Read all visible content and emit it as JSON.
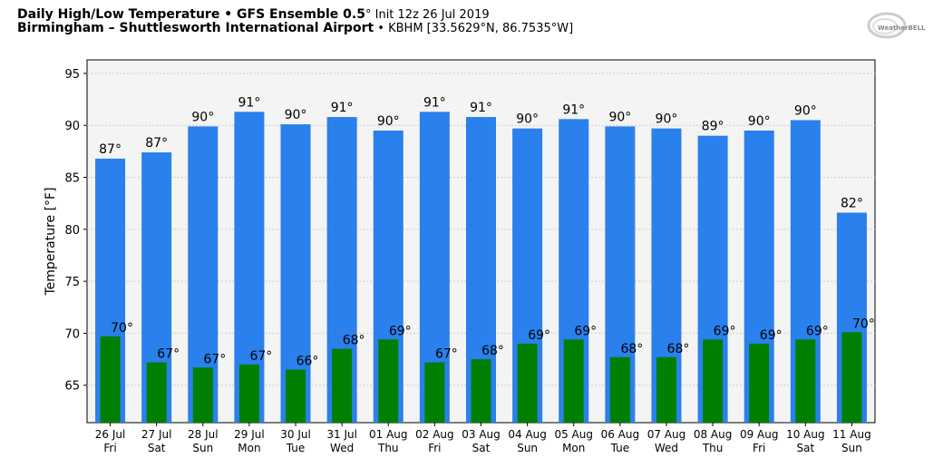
{
  "title": {
    "line1_bold": "Daily High/Low Temperature • GFS Ensemble 0.5",
    "line1_deg": "°",
    "line1_rest": " Init 12z 26 Jul 2019",
    "line2_bold": "Birmingham – Shuttlesworth International Airport",
    "line2_rest": " • KBHM [33.5629°N, 86.7535°W]"
  },
  "logo_text": "WeatherBELL",
  "colors": {
    "high": "#2a80ec",
    "low": "#007f00",
    "plot_bg": "#f4f4f4",
    "grid": "#cccccc"
  },
  "chart_data": {
    "type": "bar",
    "title": "Daily High/Low Temperature",
    "ylabel": "Temperature [°F]",
    "xlabel": "",
    "ylim": [
      61.4,
      96.3
    ],
    "yticks": [
      65,
      70,
      75,
      80,
      85,
      90,
      95
    ],
    "grid": true,
    "categories": [
      "26 Jul",
      "27 Jul",
      "28 Jul",
      "29 Jul",
      "30 Jul",
      "31 Jul",
      "01 Aug",
      "02 Aug",
      "03 Aug",
      "04 Aug",
      "05 Aug",
      "06 Aug",
      "07 Aug",
      "08 Aug",
      "09 Aug",
      "10 Aug",
      "11 Aug"
    ],
    "weekdays": [
      "Fri",
      "Sat",
      "Sun",
      "Mon",
      "Tue",
      "Wed",
      "Thu",
      "Fri",
      "Sat",
      "Sun",
      "Mon",
      "Tue",
      "Wed",
      "Thu",
      "Fri",
      "Sat",
      "Sun"
    ],
    "series": [
      {
        "name": "High",
        "values": [
          86.8,
          87.4,
          89.9,
          91.3,
          90.1,
          90.8,
          89.5,
          91.3,
          90.8,
          89.7,
          90.6,
          89.9,
          89.7,
          89.0,
          89.5,
          90.5,
          81.6
        ],
        "labels": [
          "87°",
          "87°",
          "90°",
          "91°",
          "90°",
          "91°",
          "90°",
          "91°",
          "91°",
          "90°",
          "91°",
          "90°",
          "90°",
          "89°",
          "90°",
          "90°",
          "82°"
        ]
      },
      {
        "name": "Low",
        "values": [
          69.7,
          67.2,
          66.7,
          67.0,
          66.5,
          68.5,
          69.4,
          67.2,
          67.5,
          69.0,
          69.4,
          67.7,
          67.7,
          69.4,
          69.0,
          69.4,
          70.1
        ],
        "labels": [
          "70°",
          "67°",
          "67°",
          "67°",
          "66°",
          "68°",
          "69°",
          "67°",
          "68°",
          "69°",
          "69°",
          "68°",
          "68°",
          "69°",
          "69°",
          "69°",
          "70°"
        ]
      }
    ]
  }
}
